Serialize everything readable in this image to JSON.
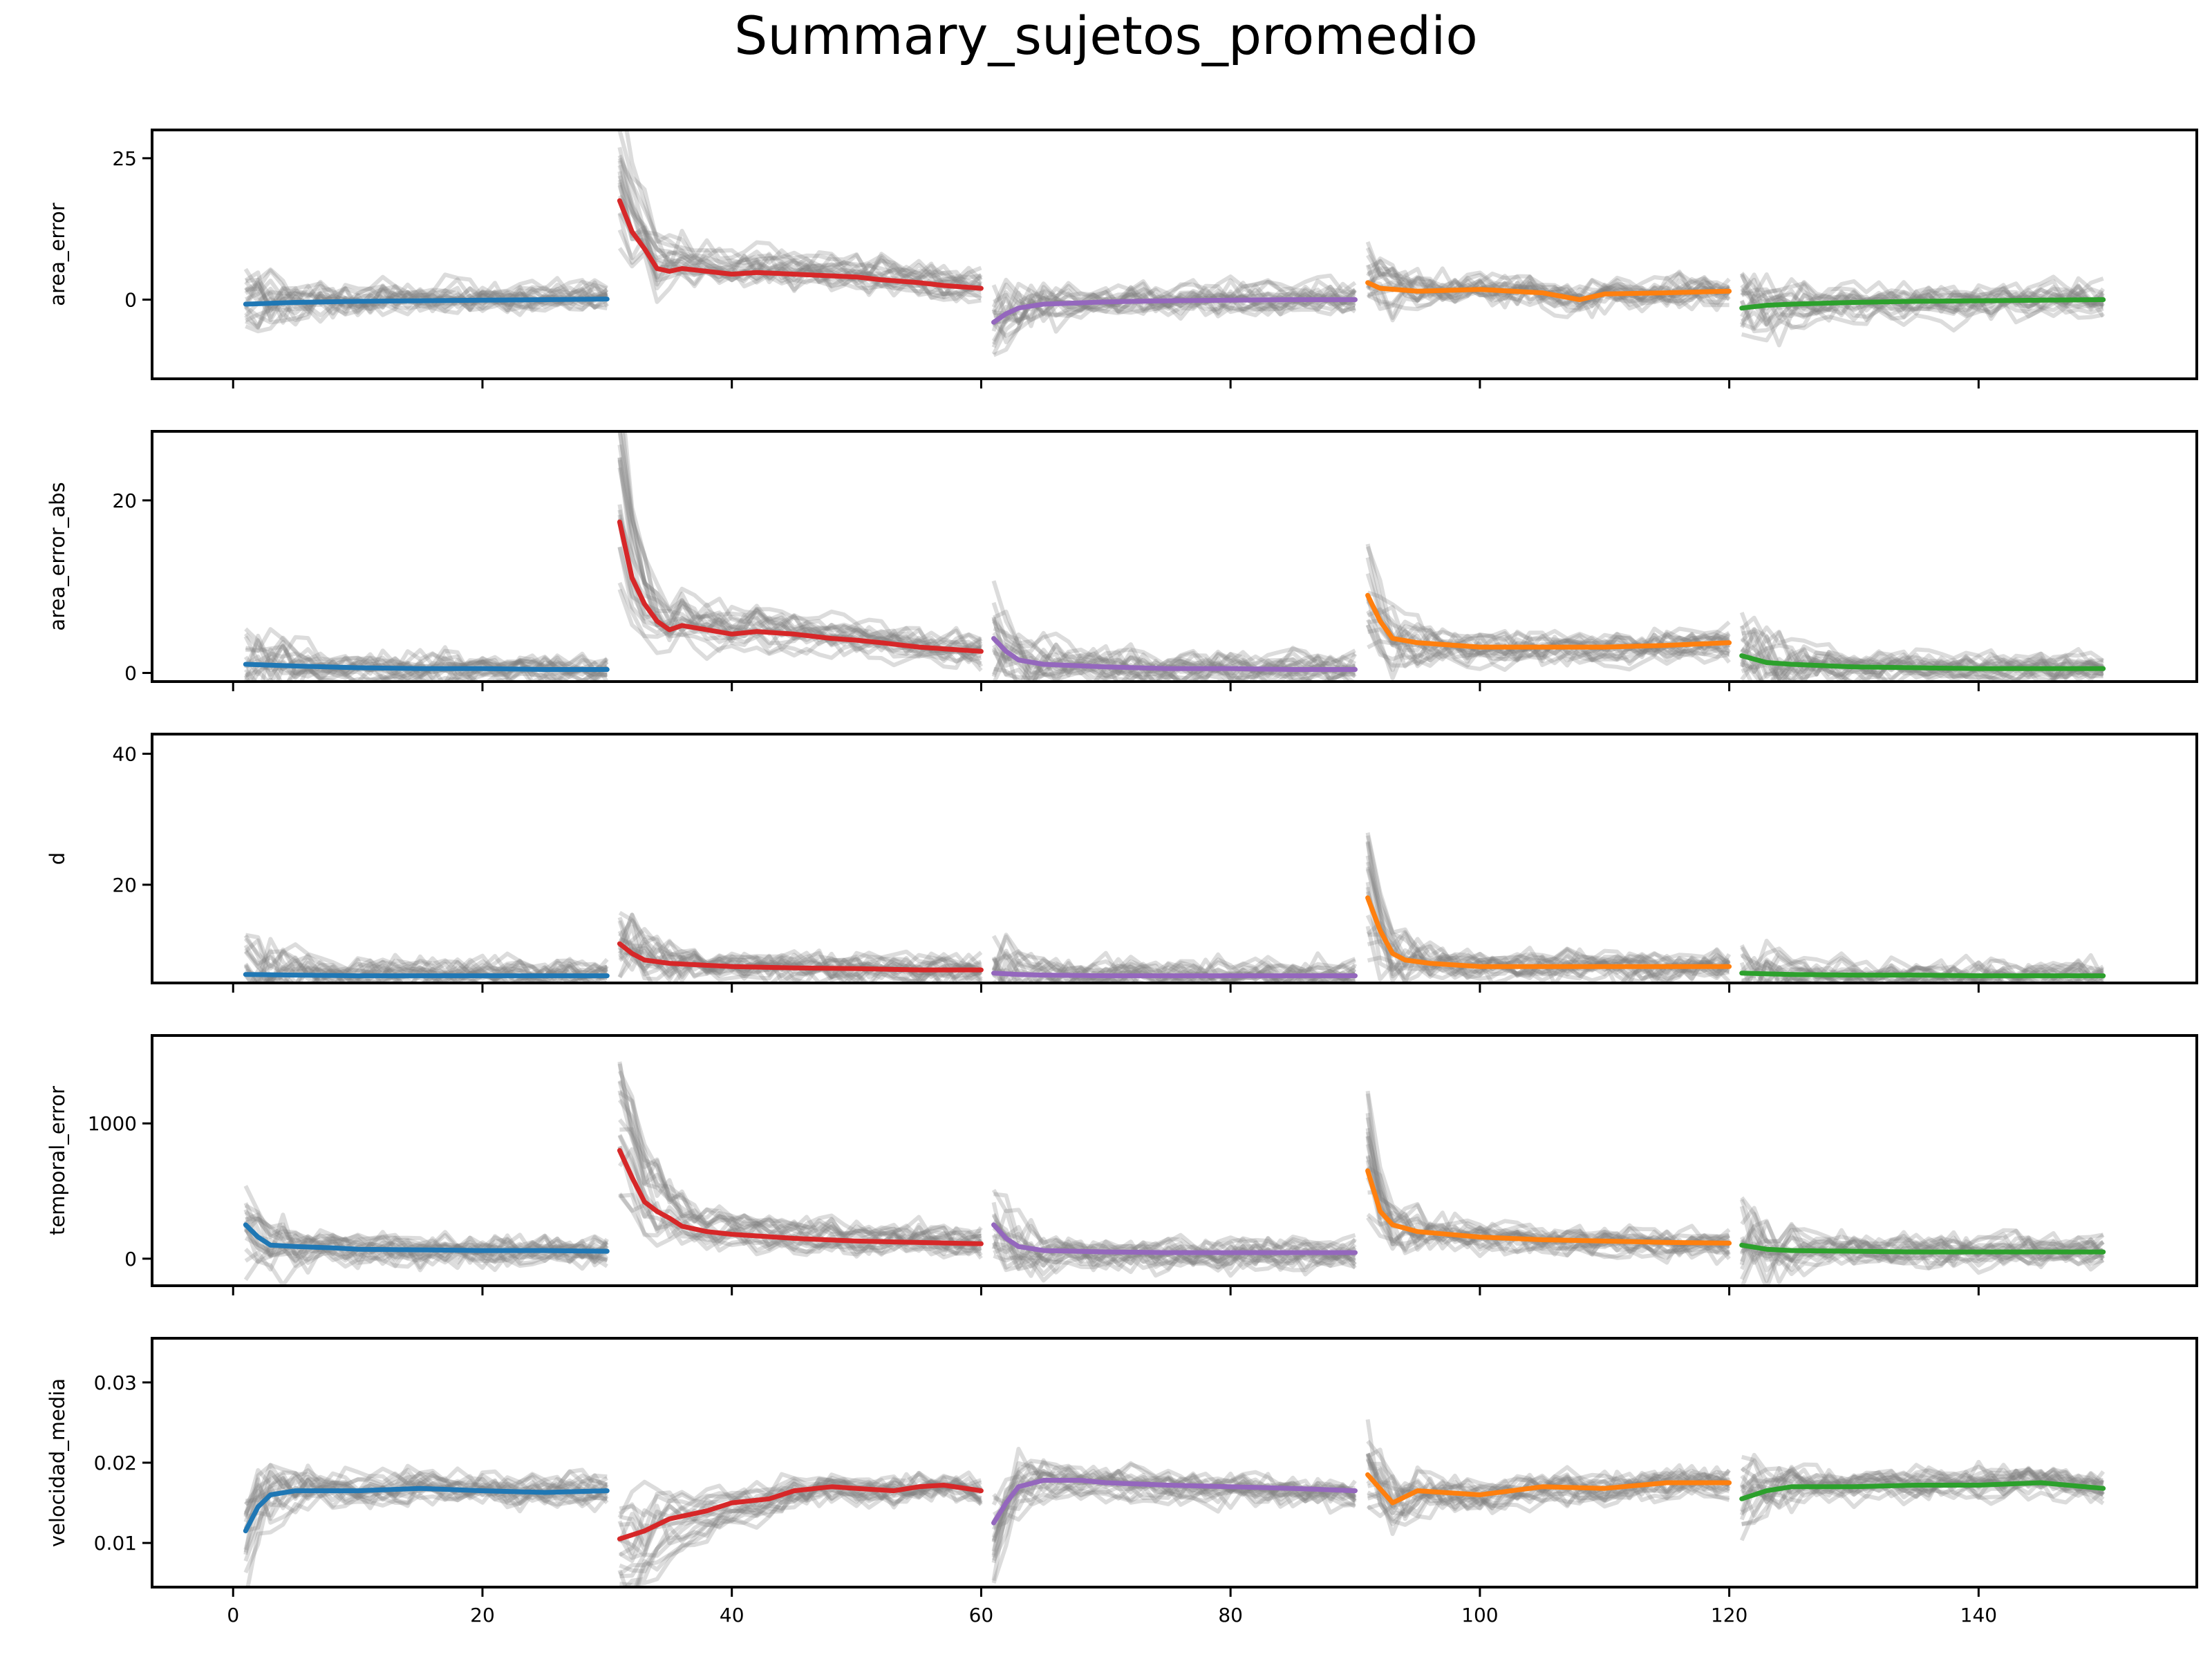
{
  "chart_data": {
    "type": "line",
    "title": "Summary_sujetos_promedio",
    "x_tick_labels": [
      "0",
      "20",
      "40",
      "60",
      "80",
      "100",
      "120",
      "140"
    ],
    "x_ticks": [
      0,
      20,
      40,
      60,
      80,
      100,
      120,
      140
    ],
    "xlim": [
      -6.5,
      157.5
    ],
    "block_colors": [
      "#1f77b4",
      "#d62728",
      "#9467bd",
      "#ff7f0e",
      "#2ca02c"
    ],
    "individual_color": "#808080",
    "blocks": [
      [
        1,
        30
      ],
      [
        31,
        60
      ],
      [
        61,
        90
      ],
      [
        91,
        120
      ],
      [
        121,
        150
      ]
    ],
    "panels": [
      {
        "ylabel": "area_error",
        "ylim": [
          -14,
          30
        ],
        "yticks": [
          0,
          25
        ],
        "ytick_labels": [
          "0",
          "25"
        ],
        "mean_series": [
          {
            "name": "block1",
            "color": "#1f77b4",
            "x": [
              1,
              5,
              10,
              15,
              20,
              25,
              30
            ],
            "y": [
              -0.8,
              -0.5,
              -0.3,
              -0.2,
              -0.1,
              0.0,
              0.1
            ]
          },
          {
            "name": "block2",
            "color": "#d62728",
            "x": [
              31,
              32,
              33,
              34,
              35,
              36,
              38,
              40,
              42,
              45,
              48,
              50,
              52,
              55,
              57,
              60
            ],
            "y": [
              17.5,
              12.0,
              9.0,
              5.5,
              5.0,
              5.5,
              5.0,
              4.5,
              4.8,
              4.5,
              4.2,
              4.0,
              3.5,
              3.0,
              2.5,
              2.0
            ]
          },
          {
            "name": "block3",
            "color": "#9467bd",
            "x": [
              61,
              62,
              63,
              65,
              70,
              75,
              80,
              85,
              90
            ],
            "y": [
              -4.0,
              -2.5,
              -1.5,
              -0.8,
              -0.4,
              -0.2,
              -0.1,
              0.0,
              0.0
            ]
          },
          {
            "name": "block4",
            "color": "#ff7f0e",
            "x": [
              91,
              92,
              95,
              100,
              105,
              108,
              110,
              115,
              120
            ],
            "y": [
              3.0,
              2.0,
              1.5,
              1.8,
              1.2,
              0.0,
              1.0,
              1.2,
              1.5
            ]
          },
          {
            "name": "block5",
            "color": "#2ca02c",
            "x": [
              121,
              123,
              125,
              130,
              135,
              140,
              145,
              150
            ],
            "y": [
              -1.5,
              -1.0,
              -0.8,
              -0.5,
              -0.3,
              -0.2,
              -0.1,
              0.0
            ]
          }
        ]
      },
      {
        "ylabel": "area_error_abs",
        "ylim": [
          -1,
          28
        ],
        "yticks": [
          0,
          20
        ],
        "ytick_labels": [
          "0",
          "20"
        ],
        "mean_series": [
          {
            "name": "block1",
            "color": "#1f77b4",
            "x": [
              1,
              5,
              10,
              15,
              20,
              25,
              30
            ],
            "y": [
              1.0,
              0.8,
              0.6,
              0.5,
              0.5,
              0.4,
              0.4
            ]
          },
          {
            "name": "block2",
            "color": "#d62728",
            "x": [
              31,
              32,
              33,
              34,
              35,
              36,
              38,
              40,
              42,
              45,
              48,
              50,
              52,
              55,
              57,
              60
            ],
            "y": [
              17.5,
              11.0,
              8.0,
              6.0,
              5.0,
              5.5,
              5.0,
              4.5,
              4.8,
              4.5,
              4.0,
              3.8,
              3.5,
              3.0,
              2.8,
              2.5
            ]
          },
          {
            "name": "block3",
            "color": "#9467bd",
            "x": [
              61,
              62,
              63,
              65,
              70,
              75,
              80,
              85,
              90
            ],
            "y": [
              4.0,
              2.5,
              1.5,
              1.0,
              0.7,
              0.5,
              0.5,
              0.4,
              0.4
            ]
          },
          {
            "name": "block4",
            "color": "#ff7f0e",
            "x": [
              91,
              92,
              93,
              95,
              100,
              105,
              110,
              115,
              120
            ],
            "y": [
              9.0,
              6.0,
              4.0,
              3.5,
              3.0,
              3.0,
              3.0,
              3.2,
              3.5
            ]
          },
          {
            "name": "block5",
            "color": "#2ca02c",
            "x": [
              121,
              123,
              125,
              130,
              135,
              140,
              145,
              150
            ],
            "y": [
              2.0,
              1.2,
              1.0,
              0.7,
              0.6,
              0.5,
              0.5,
              0.5
            ]
          }
        ]
      },
      {
        "ylabel": "d",
        "ylim": [
          5,
          43
        ],
        "yticks": [
          20,
          40
        ],
        "ytick_labels": [
          "20",
          "40"
        ],
        "mean_series": [
          {
            "name": "block1",
            "color": "#1f77b4",
            "x": [
              1,
              5,
              10,
              15,
              20,
              25,
              30
            ],
            "y": [
              6.3,
              6.2,
              6.1,
              6.1,
              6.1,
              6.1,
              6.1
            ]
          },
          {
            "name": "block2",
            "color": "#d62728",
            "x": [
              31,
              32,
              33,
              35,
              37,
              40,
              45,
              50,
              55,
              60
            ],
            "y": [
              11.0,
              9.5,
              8.5,
              8.0,
              7.8,
              7.5,
              7.3,
              7.2,
              7.0,
              7.0
            ]
          },
          {
            "name": "block3",
            "color": "#9467bd",
            "x": [
              61,
              63,
              65,
              70,
              75,
              80,
              85,
              90
            ],
            "y": [
              6.5,
              6.3,
              6.2,
              6.1,
              6.1,
              6.1,
              6.1,
              6.1
            ]
          },
          {
            "name": "block4",
            "color": "#ff7f0e",
            "x": [
              91,
              92,
              93,
              94,
              96,
              100,
              105,
              110,
              115,
              120
            ],
            "y": [
              18.0,
              13.0,
              9.5,
              8.5,
              8.0,
              7.5,
              7.5,
              7.5,
              7.5,
              7.5
            ]
          },
          {
            "name": "block5",
            "color": "#2ca02c",
            "x": [
              121,
              125,
              130,
              135,
              140,
              145,
              150
            ],
            "y": [
              6.5,
              6.3,
              6.2,
              6.2,
              6.1,
              6.1,
              6.1
            ]
          }
        ]
      },
      {
        "ylabel": "temporal_error",
        "ylim": [
          -200,
          1650
        ],
        "yticks": [
          0,
          1000
        ],
        "ytick_labels": [
          "0",
          "1000"
        ],
        "mean_series": [
          {
            "name": "block1",
            "color": "#1f77b4",
            "x": [
              1,
              2,
              3,
              5,
              8,
              10,
              15,
              20,
              25,
              30
            ],
            "y": [
              250,
              160,
              100,
              90,
              80,
              70,
              65,
              60,
              60,
              55
            ]
          },
          {
            "name": "block2",
            "color": "#d62728",
            "x": [
              31,
              32,
              33,
              34,
              35,
              36,
              38,
              40,
              45,
              50,
              55,
              60
            ],
            "y": [
              800,
              600,
              420,
              350,
              300,
              240,
              200,
              180,
              150,
              130,
              120,
              110
            ]
          },
          {
            "name": "block3",
            "color": "#9467bd",
            "x": [
              61,
              62,
              63,
              65,
              70,
              75,
              80,
              85,
              90
            ],
            "y": [
              250,
              150,
              90,
              60,
              50,
              45,
              45,
              45,
              45
            ]
          },
          {
            "name": "block4",
            "color": "#ff7f0e",
            "x": [
              91,
              92,
              93,
              95,
              100,
              105,
              110,
              115,
              120
            ],
            "y": [
              650,
              350,
              250,
              200,
              160,
              140,
              130,
              120,
              115
            ]
          },
          {
            "name": "block5",
            "color": "#2ca02c",
            "x": [
              121,
              123,
              125,
              130,
              135,
              140,
              145,
              150
            ],
            "y": [
              100,
              70,
              60,
              55,
              50,
              50,
              50,
              50
            ]
          }
        ]
      },
      {
        "ylabel": "velocidad_media",
        "ylim": [
          0.0045,
          0.0355
        ],
        "yticks": [
          0.01,
          0.02,
          0.03
        ],
        "ytick_labels": [
          "0.01",
          "0.02",
          "0.03"
        ],
        "mean_series": [
          {
            "name": "block1",
            "color": "#1f77b4",
            "x": [
              1,
              2,
              3,
              5,
              8,
              10,
              15,
              20,
              25,
              30
            ],
            "y": [
              0.0115,
              0.0145,
              0.016,
              0.0165,
              0.0165,
              0.0165,
              0.0168,
              0.0165,
              0.0163,
              0.0165
            ]
          },
          {
            "name": "block2",
            "color": "#d62728",
            "x": [
              31,
              33,
              35,
              38,
              40,
              43,
              45,
              48,
              50,
              53,
              55,
              57,
              60
            ],
            "y": [
              0.0105,
              0.0115,
              0.013,
              0.014,
              0.015,
              0.0155,
              0.0165,
              0.017,
              0.0168,
              0.0165,
              0.017,
              0.0172,
              0.0165
            ]
          },
          {
            "name": "block3",
            "color": "#9467bd",
            "x": [
              61,
              62,
              63,
              65,
              68,
              70,
              75,
              80,
              85,
              90
            ],
            "y": [
              0.0125,
              0.015,
              0.017,
              0.0178,
              0.0178,
              0.0175,
              0.0172,
              0.017,
              0.0168,
              0.0165
            ]
          },
          {
            "name": "block4",
            "color": "#ff7f0e",
            "x": [
              91,
              93,
              95,
              100,
              105,
              110,
              115,
              120
            ],
            "y": [
              0.0185,
              0.015,
              0.0165,
              0.016,
              0.017,
              0.0168,
              0.0175,
              0.0175
            ]
          },
          {
            "name": "block5",
            "color": "#2ca02c",
            "x": [
              121,
              123,
              125,
              130,
              135,
              140,
              145,
              150
            ],
            "y": [
              0.0155,
              0.0165,
              0.017,
              0.017,
              0.0172,
              0.0172,
              0.0175,
              0.0168
            ]
          }
        ]
      }
    ]
  }
}
